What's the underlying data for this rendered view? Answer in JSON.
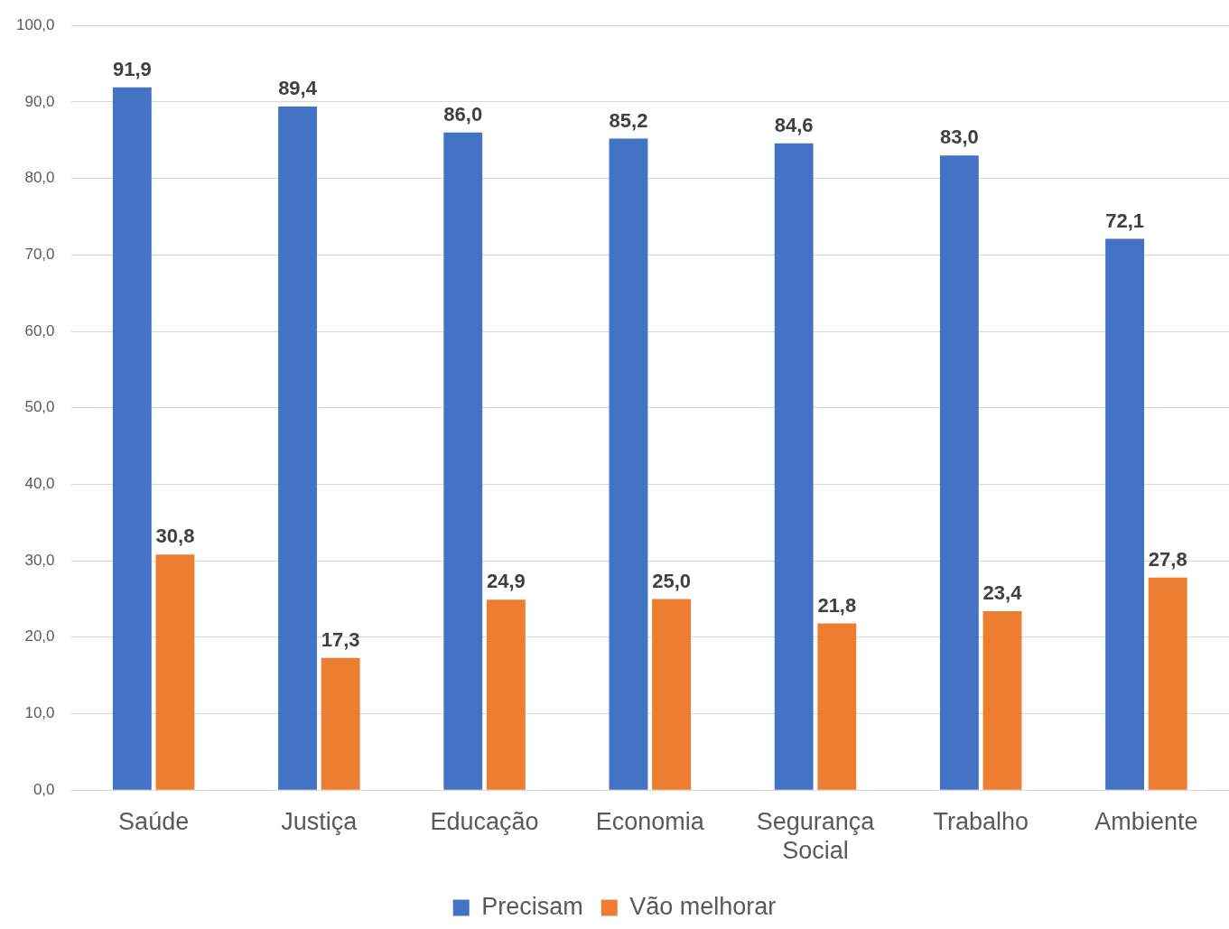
{
  "chart_data": {
    "type": "bar",
    "categories": [
      "Saúde",
      "Justiça",
      "Educação",
      "Economia",
      "Segurança Social",
      "Trabalho",
      "Ambiente"
    ],
    "series": [
      {
        "name": "Precisam",
        "color": "#4472c4",
        "values": [
          91.9,
          89.4,
          86.0,
          85.2,
          84.6,
          83.0,
          72.1
        ],
        "value_labels": [
          "91,9",
          "89,4",
          "86,0",
          "85,2",
          "84,6",
          "83,0",
          "72,1"
        ]
      },
      {
        "name": "Vão melhorar",
        "color": "#ed7d31",
        "values": [
          30.8,
          17.3,
          24.9,
          25.0,
          21.8,
          23.4,
          27.8
        ],
        "value_labels": [
          "30,8",
          "17,3",
          "24,9",
          "25,0",
          "21,8",
          "23,4",
          "27,8"
        ]
      }
    ],
    "ylim": [
      0,
      100
    ],
    "yticks": [
      {
        "value": 0,
        "label": "0,0"
      },
      {
        "value": 10,
        "label": "10,0"
      },
      {
        "value": 20,
        "label": "20,0"
      },
      {
        "value": 30,
        "label": "30,0"
      },
      {
        "value": 40,
        "label": "40,0"
      },
      {
        "value": 50,
        "label": "50,0"
      },
      {
        "value": 60,
        "label": "60,0"
      },
      {
        "value": 70,
        "label": "70,0"
      },
      {
        "value": 80,
        "label": "80,0"
      },
      {
        "value": 90,
        "label": "90,0"
      },
      {
        "value": 100,
        "label": "100,0"
      }
    ],
    "grid": "y",
    "legend": "bottom"
  }
}
